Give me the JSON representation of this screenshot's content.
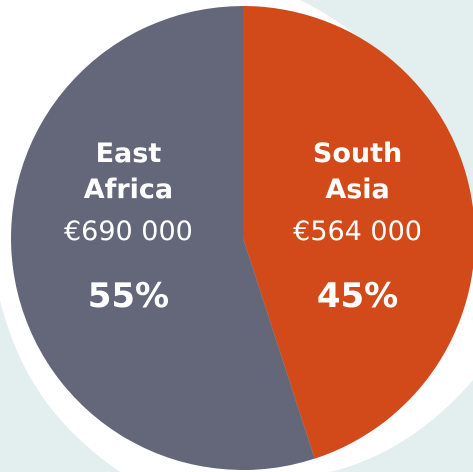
{
  "chart_data": {
    "type": "pie",
    "categories": [
      "South Asia",
      "East Africa"
    ],
    "values": [
      45,
      55
    ],
    "value_labels": [
      "45%",
      "55%"
    ],
    "amounts": [
      564000,
      690000
    ],
    "amount_labels": [
      "€564 000",
      "€690 000"
    ],
    "colors": [
      "#d2491a",
      "#636779"
    ]
  }
}
